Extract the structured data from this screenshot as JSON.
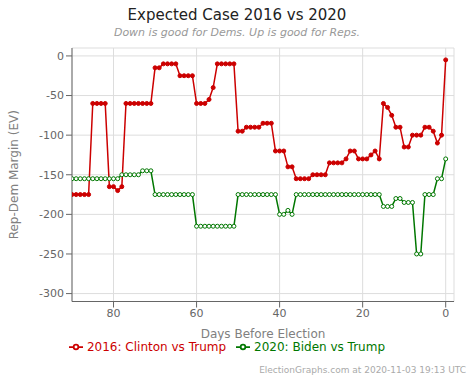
{
  "chart_data": {
    "type": "line",
    "title": "Expected Case 2016 vs 2020",
    "subtitle": "Down is good for Dems. Up is good for Reps.",
    "xlabel": "Days Before Election",
    "ylabel": "Rep-Dem Margin (EV)",
    "annotations": [
      "ElectionGraphs.com at 2020-11-03 19:13 UTC"
    ],
    "xlim": [
      90,
      -2
    ],
    "ylim": [
      -310,
      10
    ],
    "xticks": [
      80,
      60,
      40,
      20,
      0
    ],
    "yticks": [
      0,
      -50,
      -100,
      -150,
      -200,
      -250,
      -300
    ],
    "grid": true,
    "legend": "bottom",
    "x": [
      90,
      89,
      88,
      87,
      86,
      85,
      84,
      83,
      82,
      81,
      80,
      79,
      78,
      77,
      76,
      75,
      74,
      73,
      72,
      71,
      70,
      69,
      68,
      67,
      66,
      65,
      64,
      63,
      62,
      61,
      60,
      59,
      58,
      57,
      56,
      55,
      54,
      53,
      52,
      51,
      50,
      49,
      48,
      47,
      46,
      45,
      44,
      43,
      42,
      41,
      40,
      39,
      38,
      37,
      36,
      35,
      34,
      33,
      32,
      31,
      30,
      29,
      28,
      27,
      26,
      25,
      24,
      23,
      22,
      21,
      20,
      19,
      18,
      17,
      16,
      15,
      14,
      13,
      12,
      11,
      10,
      9,
      8,
      7,
      6,
      5,
      4,
      3,
      2,
      1,
      0
    ],
    "series": [
      {
        "name": "2016: Clinton vs Trump",
        "color": "#cc0000",
        "marker": "circle",
        "values": [
          -175,
          -175,
          -175,
          -175,
          -175,
          -60,
          -60,
          -60,
          -60,
          -165,
          -165,
          -170,
          -165,
          -60,
          -60,
          -60,
          -60,
          -60,
          -60,
          -60,
          -15,
          -15,
          -10,
          -10,
          -10,
          -10,
          -25,
          -25,
          -25,
          -25,
          -60,
          -60,
          -60,
          -55,
          -40,
          -10,
          -10,
          -10,
          -10,
          -10,
          -95,
          -95,
          -90,
          -90,
          -90,
          -90,
          -85,
          -85,
          -85,
          -120,
          -120,
          -120,
          -140,
          -140,
          -155,
          -155,
          -155,
          -155,
          -150,
          -150,
          -150,
          -150,
          -135,
          -135,
          -135,
          -135,
          -130,
          -120,
          -120,
          -130,
          -130,
          -130,
          -125,
          -120,
          -130,
          -60,
          -65,
          -75,
          -90,
          -90,
          -115,
          -115,
          -100,
          -100,
          -100,
          -90,
          -90,
          -95,
          -110,
          -100,
          -5
        ]
      },
      {
        "name": "2020: Biden vs Trump",
        "color": "#007700",
        "marker": "open_circle",
        "values": [
          -155,
          -155,
          -155,
          -155,
          -155,
          -155,
          -155,
          -155,
          -155,
          -155,
          -155,
          -155,
          -150,
          -150,
          -150,
          -150,
          -150,
          -145,
          -145,
          -145,
          -175,
          -175,
          -175,
          -175,
          -175,
          -175,
          -175,
          -175,
          -175,
          -175,
          -215,
          -215,
          -215,
          -215,
          -215,
          -215,
          -215,
          -215,
          -215,
          -215,
          -175,
          -175,
          -175,
          -175,
          -175,
          -175,
          -175,
          -175,
          -175,
          -175,
          -200,
          -200,
          -195,
          -200,
          -175,
          -175,
          -175,
          -175,
          -175,
          -175,
          -175,
          -175,
          -175,
          -175,
          -175,
          -175,
          -175,
          -175,
          -175,
          -175,
          -175,
          -175,
          -175,
          -175,
          -175,
          -190,
          -190,
          -190,
          -180,
          -180,
          -185,
          -185,
          -185,
          -250,
          -250,
          -175,
          -175,
          -175,
          -155,
          -155,
          -130
        ]
      }
    ]
  }
}
